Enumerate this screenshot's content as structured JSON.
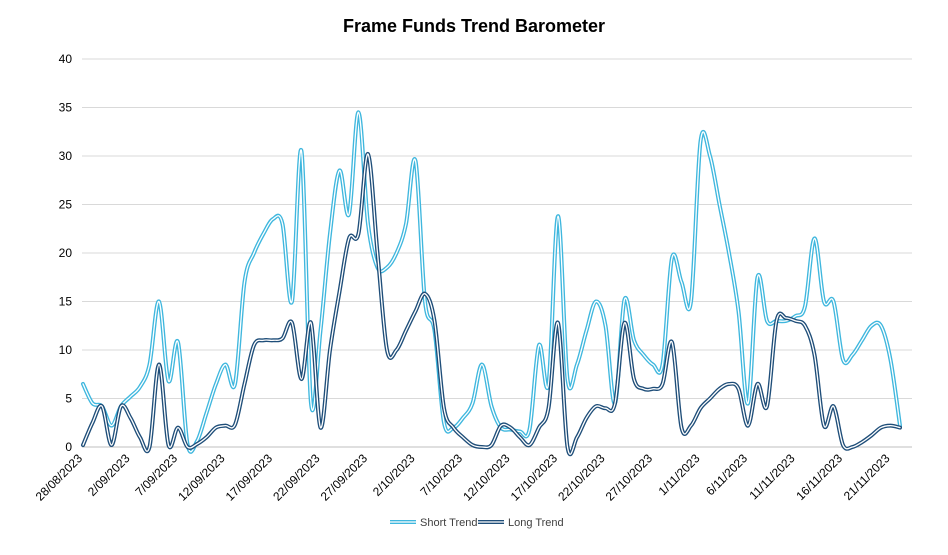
{
  "chart_data": {
    "type": "line",
    "title": "Frame Funds Trend Barometer",
    "xlabel": "",
    "ylabel": "",
    "ylim": [
      0,
      40
    ],
    "yticks": [
      0,
      5,
      10,
      15,
      20,
      25,
      30,
      35,
      40
    ],
    "grid": true,
    "legend_position": "bottom",
    "x_tick_labels": [
      "28/08/2023",
      "2/09/2023",
      "7/09/2023",
      "12/09/2023",
      "17/09/2023",
      "22/09/2023",
      "27/09/2023",
      "2/10/2023",
      "7/10/2023",
      "12/10/2023",
      "17/10/2023",
      "22/10/2023",
      "27/10/2023",
      "1/11/2023",
      "6/11/2023",
      "11/11/2023",
      "16/11/2023",
      "21/11/2023"
    ],
    "x": [
      "28/08/2023",
      "29/08/2023",
      "30/08/2023",
      "31/08/2023",
      "1/09/2023",
      "2/09/2023",
      "3/09/2023",
      "4/09/2023",
      "5/09/2023",
      "6/09/2023",
      "7/09/2023",
      "8/09/2023",
      "9/09/2023",
      "10/09/2023",
      "11/09/2023",
      "12/09/2023",
      "13/09/2023",
      "14/09/2023",
      "15/09/2023",
      "16/09/2023",
      "17/09/2023",
      "18/09/2023",
      "19/09/2023",
      "20/09/2023",
      "21/09/2023",
      "22/09/2023",
      "23/09/2023",
      "24/09/2023",
      "25/09/2023",
      "26/09/2023",
      "27/09/2023",
      "28/09/2023",
      "29/09/2023",
      "30/09/2023",
      "1/10/2023",
      "2/10/2023",
      "3/10/2023",
      "4/10/2023",
      "5/10/2023",
      "6/10/2023",
      "7/10/2023",
      "8/10/2023",
      "9/10/2023",
      "10/10/2023",
      "11/10/2023",
      "12/10/2023",
      "13/10/2023",
      "14/10/2023",
      "15/10/2023",
      "16/10/2023",
      "17/10/2023",
      "18/10/2023",
      "19/10/2023",
      "20/10/2023",
      "21/10/2023",
      "22/10/2023",
      "23/10/2023",
      "24/10/2023",
      "25/10/2023",
      "26/10/2023",
      "27/10/2023",
      "28/10/2023",
      "29/10/2023",
      "30/10/2023",
      "31/10/2023",
      "1/11/2023",
      "2/11/2023",
      "3/11/2023",
      "4/11/2023",
      "5/11/2023",
      "6/11/2023",
      "7/11/2023",
      "8/11/2023",
      "9/11/2023",
      "10/11/2023",
      "11/11/2023",
      "12/11/2023",
      "13/11/2023",
      "14/11/2023",
      "15/11/2023",
      "16/11/2023",
      "17/11/2023",
      "18/11/2023",
      "19/11/2023",
      "20/11/2023",
      "21/11/2023",
      "22/11/2023"
    ],
    "series": [
      {
        "name": "Short Trend",
        "color": "#3FB7DE",
        "values": [
          6.5,
          4.5,
          4.2,
          2.2,
          4.2,
          5.2,
          6.2,
          8.5,
          15.0,
          6.8,
          10.8,
          0.3,
          0.6,
          3.5,
          6.5,
          8.5,
          6.5,
          17.0,
          20.0,
          22.0,
          23.5,
          23.0,
          15.0,
          30.5,
          4.5,
          12.0,
          22.0,
          28.5,
          24.0,
          34.5,
          23.0,
          18.5,
          18.5,
          20.0,
          23.0,
          29.5,
          15.0,
          12.0,
          2.5,
          2.0,
          3.0,
          4.5,
          8.5,
          4.2,
          2.0,
          1.8,
          1.6,
          1.8,
          10.5,
          6.5,
          23.8,
          7.0,
          8.5,
          12.0,
          15.0,
          12.5,
          4.5,
          15.2,
          11.0,
          9.5,
          8.5,
          8.5,
          19.5,
          17.0,
          15.0,
          31.5,
          30.0,
          25.0,
          20.0,
          14.0,
          4.5,
          17.5,
          13.0,
          13.0,
          13.0,
          13.5,
          14.5,
          21.5,
          15.0,
          15.0,
          9.0,
          9.5,
          11.0,
          12.5,
          12.5,
          9.0,
          2.2
        ]
      },
      {
        "name": "Long Trend",
        "color": "#1F4E79",
        "values": [
          0.2,
          2.5,
          4.2,
          0.2,
          4.2,
          3.0,
          1.0,
          0.0,
          8.5,
          0.2,
          2.0,
          0.0,
          0.3,
          1.0,
          2.0,
          2.2,
          2.3,
          6.5,
          10.5,
          11.0,
          11.0,
          11.2,
          12.8,
          7.0,
          12.8,
          2.0,
          10.0,
          16.0,
          21.5,
          22.0,
          30.2,
          20.0,
          10.0,
          10.0,
          12.0,
          14.0,
          15.8,
          13.0,
          4.0,
          2.0,
          1.0,
          0.2,
          0.0,
          0.2,
          2.2,
          2.0,
          1.0,
          0.2,
          2.0,
          4.0,
          12.8,
          0.0,
          1.0,
          3.0,
          4.2,
          4.0,
          4.5,
          12.8,
          7.0,
          6.0,
          6.0,
          6.5,
          10.8,
          2.0,
          2.2,
          4.0,
          5.0,
          6.0,
          6.5,
          6.0,
          2.2,
          6.5,
          4.2,
          13.0,
          13.3,
          13.0,
          12.5,
          9.5,
          2.2,
          4.2,
          0.2,
          0.0,
          0.5,
          1.2,
          2.0,
          2.2,
          2.0
        ]
      }
    ]
  }
}
